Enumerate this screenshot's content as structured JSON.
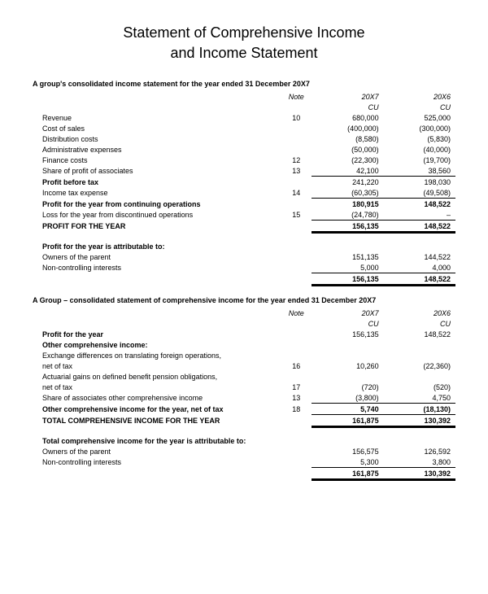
{
  "title_l1": "Statement of Comprehensive Income",
  "title_l2": "and Income Statement",
  "section1": {
    "heading": "A group's consolidated income statement for the year ended 31 December 20X7",
    "hdr_note": "Note",
    "hdr_y1": "20X7",
    "hdr_y2": "20X6",
    "hdr_cu": "CU",
    "rows": [
      {
        "label": "Revenue",
        "note": "10",
        "y1": "680,000",
        "y2": "525,000"
      },
      {
        "label": "Cost of sales",
        "note": "",
        "y1": "(400,000)",
        "y2": "(300,000)"
      },
      {
        "label": "Distribution costs",
        "note": "",
        "y1": "(8,580)",
        "y2": "(5,830)"
      },
      {
        "label": "Administrative expenses",
        "note": "",
        "y1": "(50,000)",
        "y2": "(40,000)"
      },
      {
        "label": "Finance costs",
        "note": "12",
        "y1": "(22,300)",
        "y2": "(19,700)"
      },
      {
        "label": "Share of profit of associates",
        "note": "13",
        "y1": "42,100",
        "y2": "38,560"
      }
    ],
    "pbt": {
      "label": "Profit before tax",
      "y1": "241,220",
      "y2": "198,030"
    },
    "tax": {
      "label": "Income tax expense",
      "note": "14",
      "y1": "(60,305)",
      "y2": "(49,508)"
    },
    "cont": {
      "label": "Profit for the year from continuing operations",
      "y1": "180,915",
      "y2": "148,522"
    },
    "disc": {
      "label": "Loss for the year from discontinued operations",
      "note": "15",
      "y1": "(24,780)",
      "y2": "–"
    },
    "pfty": {
      "label": "PROFIT FOR THE YEAR",
      "y1": "156,135",
      "y2": "148,522"
    },
    "attrib_heading": "Profit for the year is attributable to:",
    "attrib": [
      {
        "label": "Owners of the parent",
        "y1": "151,135",
        "y2": "144,522"
      },
      {
        "label": "Non-controlling interests",
        "y1": "5,000",
        "y2": "4,000"
      }
    ],
    "attrib_total": {
      "y1": "156,135",
      "y2": "148,522"
    }
  },
  "section2": {
    "heading": "A Group – consolidated statement of comprehensive income for the year ended 31 December 20X7",
    "hdr_note": "Note",
    "hdr_y1": "20X7",
    "hdr_y2": "20X6",
    "hdr_cu": "CU",
    "pfty": {
      "label": "Profit for the year",
      "y1": "156,135",
      "y2": "148,522"
    },
    "oci_heading": "Other comprehensive income:",
    "oci_rows": [
      {
        "label_a": "Exchange differences on translating foreign operations,",
        "label_b": "net of tax",
        "note": "16",
        "y1": "10,260",
        "y2": "(22,360)"
      },
      {
        "label_a": "Actuarial gains on defined benefit pension obligations,",
        "label_b": "net of tax",
        "note": "17",
        "y1": "(720)",
        "y2": "(520)"
      },
      {
        "label_a": "Share of associates other comprehensive income",
        "label_b": "",
        "note": "13",
        "y1": "(3,800)",
        "y2": "4,750"
      }
    ],
    "oci_net": {
      "label": "Other comprehensive income for the year, net of tax",
      "note": "18",
      "y1": "5,740",
      "y2": "(18,130)"
    },
    "tci": {
      "label": "TOTAL COMPREHENSIVE INCOME FOR THE YEAR",
      "y1": "161,875",
      "y2": "130,392"
    },
    "attrib_heading": "Total comprehensive income for the year is attributable to:",
    "attrib": [
      {
        "label": "Owners of the parent",
        "y1": "156,575",
        "y2": "126,592"
      },
      {
        "label": "Non-controlling interests",
        "y1": "5,300",
        "y2": "3,800"
      }
    ],
    "attrib_total": {
      "y1": "161,875",
      "y2": "130,392"
    }
  }
}
